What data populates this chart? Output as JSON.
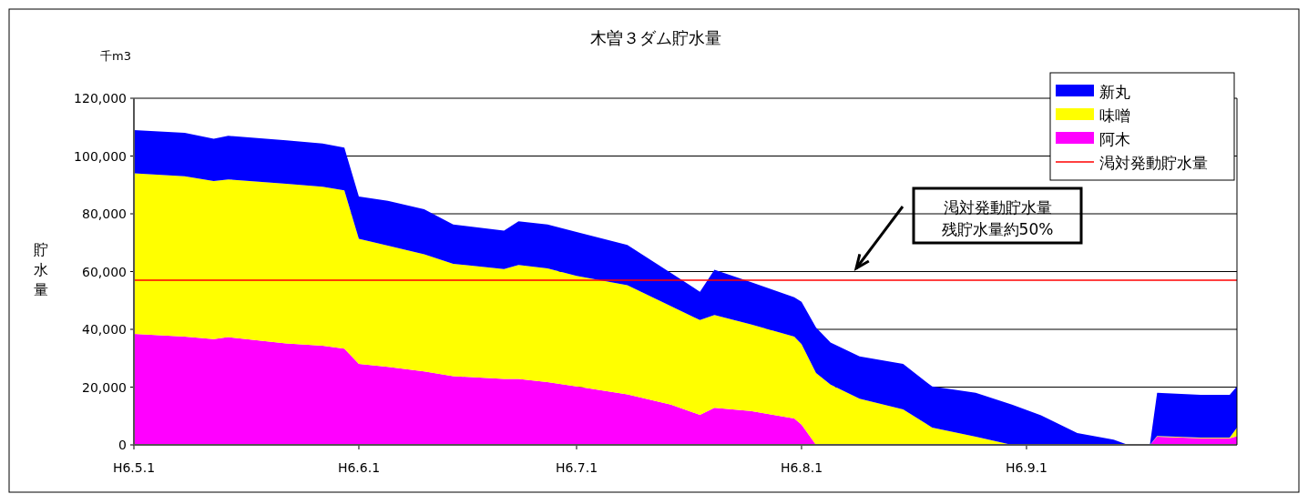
{
  "chart_data": {
    "type": "area",
    "stacked": true,
    "title": "木曽３ダム貯水量",
    "subtitle": "千m3",
    "ylabel": "貯水量",
    "x": [
      "--05-01",
      "--05-08",
      "--05-12",
      "--05-14",
      "--05-22",
      "--05-27",
      "--05-30",
      "--06-01",
      "--06-05",
      "--06-10",
      "--06-14",
      "--06-21",
      "--06-23",
      "--06-27",
      "--07-01",
      "--07-08",
      "--07-14",
      "--07-18",
      "--07-20",
      "--07-25",
      "--07-31",
      "--08-01",
      "--08-03",
      "--08-05",
      "--08-09",
      "--08-15",
      "--08-19",
      "--08-25",
      "--08-30",
      "--09-03",
      "--09-08",
      "--09-13",
      "--09-15",
      "--09-18",
      "--09-19",
      "--09-25",
      "--09-29",
      "--09-30"
    ],
    "series": [
      {
        "name": "阿木",
        "color": "#ff00ff",
        "values": [
          38400,
          37500,
          36600,
          37300,
          35100,
          34300,
          33300,
          28000,
          27000,
          25400,
          23800,
          22800,
          22800,
          21700,
          20200,
          17500,
          13900,
          10400,
          12800,
          11700,
          9100,
          7000,
          0,
          0,
          0,
          0,
          0,
          0,
          0,
          0,
          0,
          0,
          0,
          0,
          2800,
          2300,
          2300,
          3000
        ]
      },
      {
        "name": "味噌",
        "color": "#ffff00",
        "values": [
          55600,
          55500,
          54700,
          54600,
          55300,
          55100,
          54800,
          43300,
          42000,
          40600,
          38900,
          38100,
          39500,
          39400,
          38300,
          37800,
          34100,
          32800,
          32200,
          30000,
          28400,
          27900,
          24900,
          20900,
          16000,
          12300,
          6000,
          2800,
          0,
          0,
          0,
          0,
          0,
          0,
          300,
          200,
          200,
          3000
        ]
      },
      {
        "name": "新丸",
        "color": "#0000ff",
        "values": [
          15000,
          15000,
          14700,
          15100,
          15000,
          14900,
          14800,
          14700,
          15500,
          15600,
          13600,
          13300,
          15100,
          15200,
          15200,
          13900,
          11500,
          9800,
          15600,
          14700,
          13600,
          14600,
          15700,
          14500,
          14600,
          15700,
          14200,
          15200,
          13900,
          10200,
          4100,
          1800,
          0,
          0,
          14900,
          14800,
          14800,
          14200
        ]
      }
    ],
    "ref_lines": [
      {
        "axis": "y",
        "value": 57000,
        "label": "渇対発動貯水量",
        "color": "#ff0000"
      }
    ],
    "annotations": [
      "渇対発動貯水量",
      "残貯水量約50%"
    ],
    "xlim": [
      "--05-01",
      "--09-30"
    ],
    "xticks": [
      {
        "value": "--05-01",
        "label": "H6.5.1"
      },
      {
        "value": "--06-01",
        "label": "H6.6.1"
      },
      {
        "value": "--07-01",
        "label": "H6.7.1"
      },
      {
        "value": "--08-01",
        "label": "H6.8.1"
      },
      {
        "value": "--09-01",
        "label": "H6.9.1"
      }
    ],
    "ylim": [
      0,
      120000
    ],
    "yticks": [
      0,
      {
        "value": 20000,
        "label": "20,000"
      },
      {
        "value": 40000,
        "label": "40,000"
      },
      {
        "value": 60000,
        "label": "60,000"
      },
      {
        "value": 80000,
        "label": "80,000"
      },
      {
        "value": 100000,
        "label": "100,000"
      },
      {
        "value": 120000,
        "label": "120,000"
      }
    ],
    "grid": "y",
    "legend": "top right"
  }
}
